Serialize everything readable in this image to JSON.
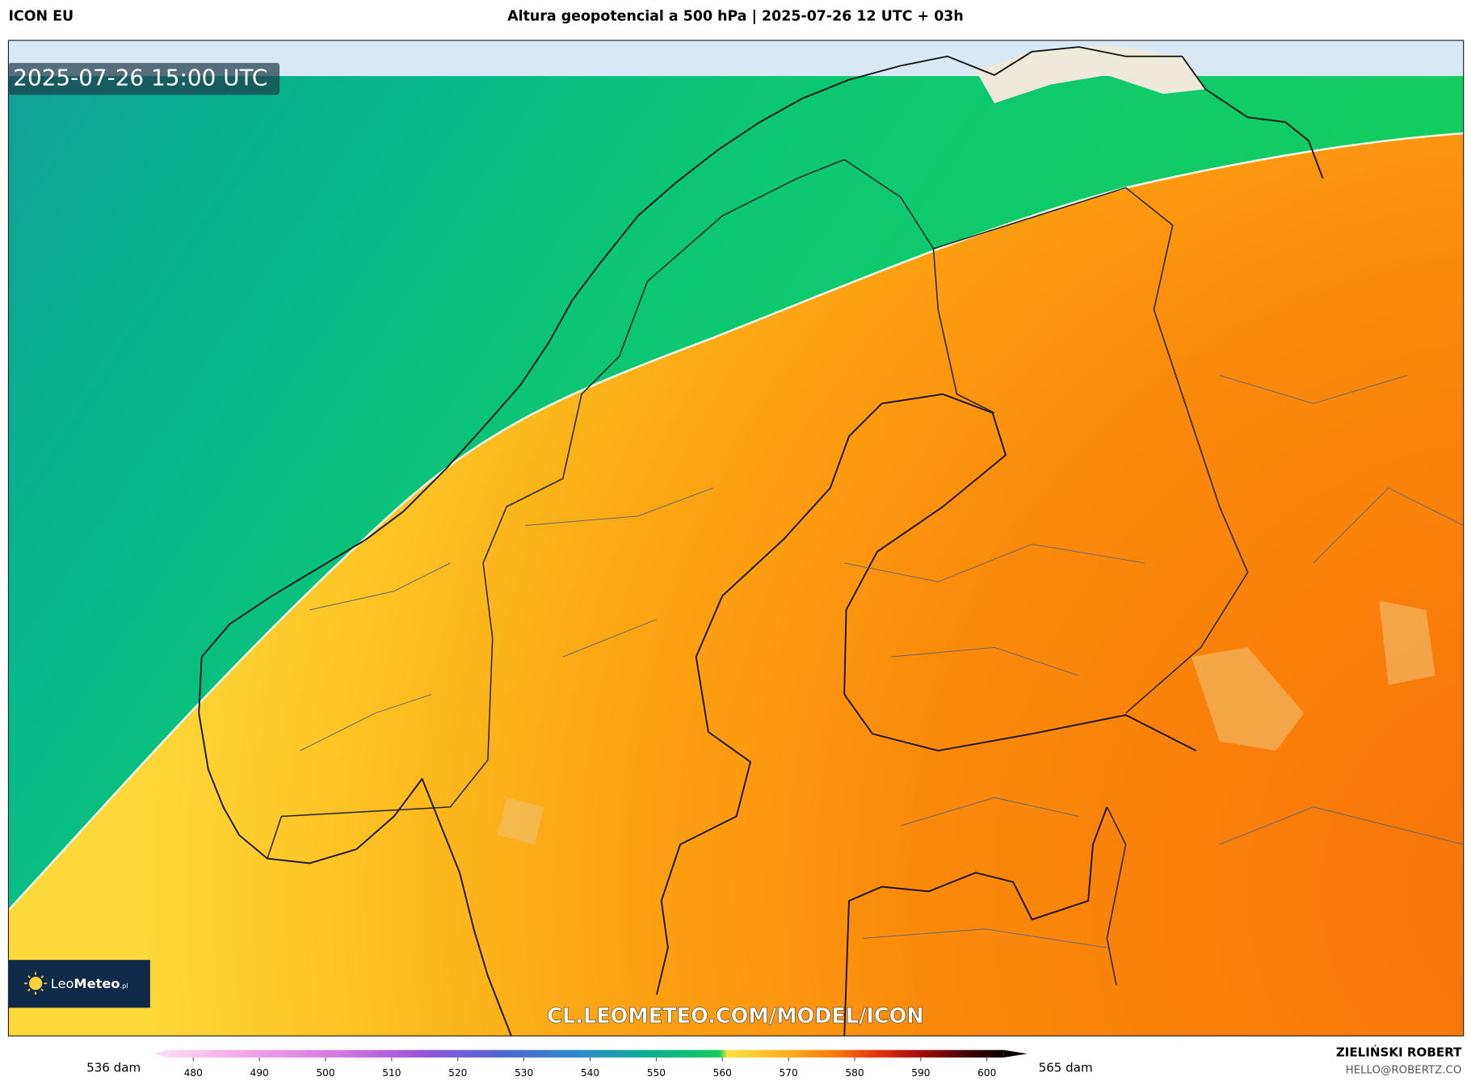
{
  "header": {
    "model": "ICON EU",
    "title": "Altura geopotencial a 500 hPa | 2025-07-26 12 UTC + 03h"
  },
  "map": {
    "valid_time": "2025-07-26 15:00 UTC",
    "watermark": "CL.LEOMETEO.COM/MODEL/ICON",
    "logo": {
      "light": "Leo",
      "bold": "Meteo",
      "suffix": ".pl"
    }
  },
  "colorbar": {
    "min_label": "536 dam",
    "max_label": "565 dam",
    "ticks": [
      480,
      490,
      500,
      510,
      520,
      530,
      540,
      550,
      560,
      570,
      580,
      590,
      600
    ]
  },
  "footer": {
    "author": "ZIELIŃSKI ROBERT",
    "email": "HELLO@ROBERTZ.CO"
  }
}
